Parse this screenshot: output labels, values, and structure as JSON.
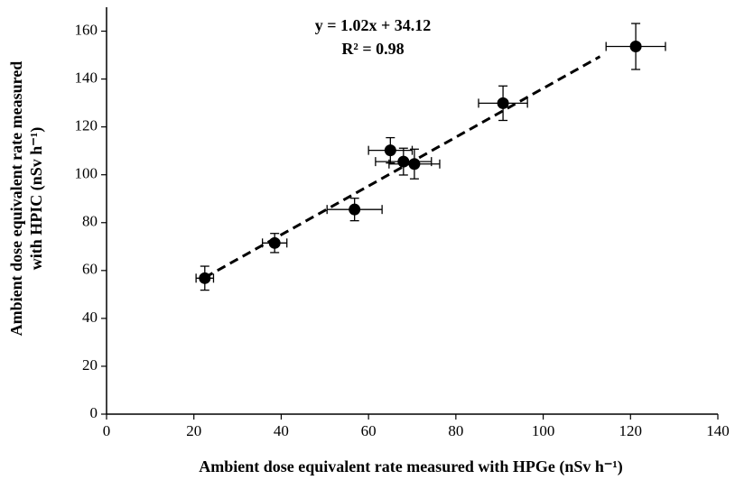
{
  "chart_data": {
    "type": "scatter",
    "x_label": "Ambient dose equivalent rate measured with HPGe (nSv h⁻¹)",
    "y_label": [
      "Ambient dose equivalent rate measured",
      "with HPIC (nSv h⁻¹)"
    ],
    "x": [
      22.5,
      38.5,
      56.8,
      65,
      68,
      70.5,
      90.8,
      121.2
    ],
    "series": [
      {
        "color": "#000000",
        "values": [
          56.8,
          71.5,
          85.5,
          110.2,
          105.5,
          104.5,
          129.9,
          153.6
        ],
        "x_error": [
          2,
          2.8,
          6.3,
          5,
          6.4,
          5.8,
          5.6,
          6.8
        ],
        "y_error": [
          5,
          4,
          4.7,
          5.3,
          5.6,
          6.2,
          7.2,
          9.6
        ]
      }
    ],
    "trendline": {
      "equation": "y = 1.02x + 34.12",
      "r2": "R² = 0.98",
      "slope": 1.02,
      "intercept": 34.12,
      "x_start": 22.5,
      "x_end": 113,
      "color": "#000000"
    },
    "xlim": [
      0,
      140
    ],
    "ylim": [
      0,
      170
    ],
    "xticks": [
      0,
      20,
      40,
      60,
      80,
      100,
      120,
      140
    ],
    "yticks": [
      0,
      20,
      40,
      60,
      80,
      100,
      120,
      140,
      160
    ],
    "grid": false
  }
}
